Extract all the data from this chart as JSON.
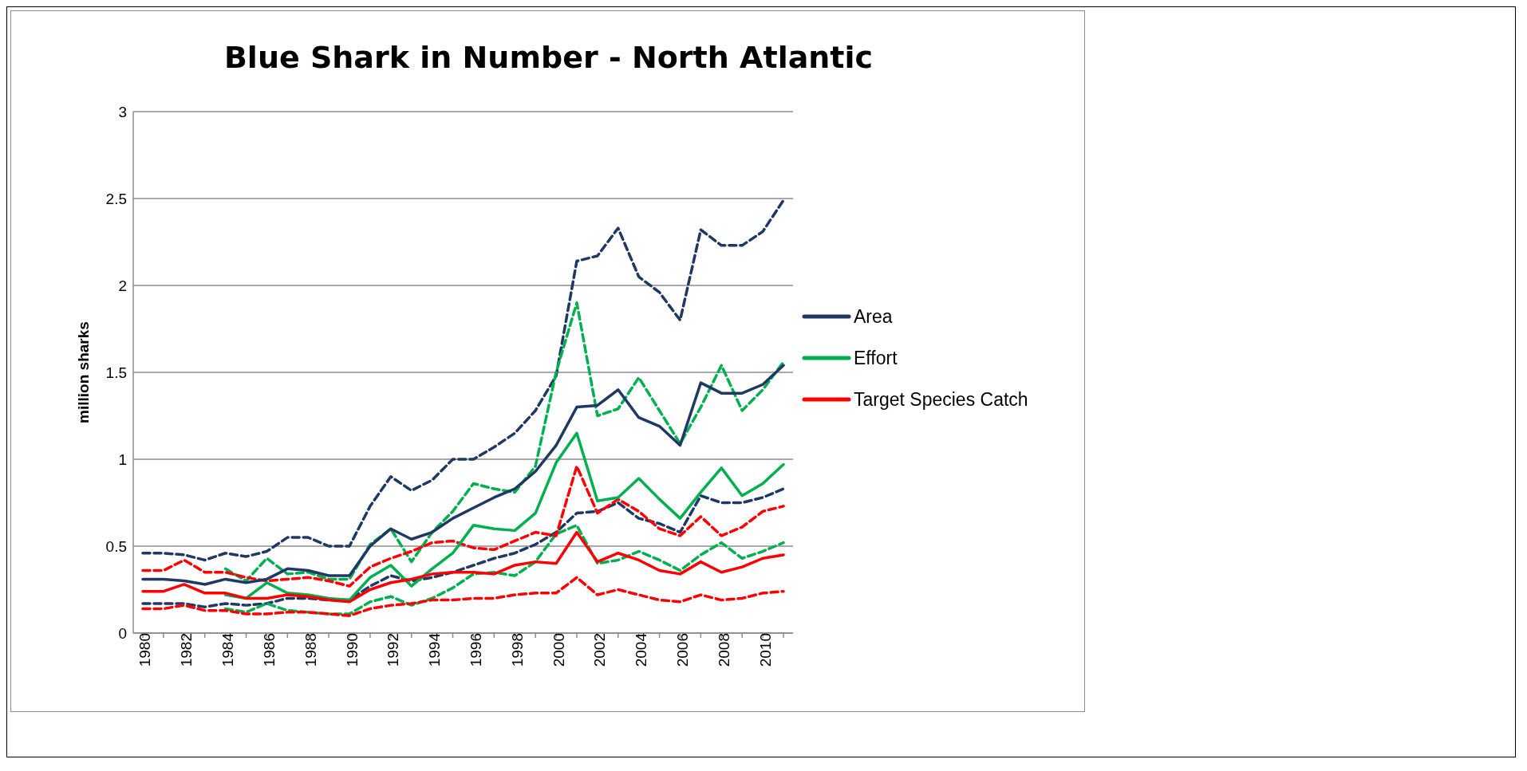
{
  "chart_data": {
    "type": "line",
    "title": "Blue Shark in Number - North Atlantic",
    "ylabel": "million sharks",
    "categories": [
      "1980",
      null,
      "1982",
      null,
      "1984",
      null,
      "1986",
      null,
      "1988",
      null,
      "1990",
      null,
      "1992",
      null,
      "1994",
      null,
      "1996",
      null,
      "1998",
      null,
      "2000",
      null,
      "2002",
      null,
      "2004",
      null,
      "2006",
      null,
      "2008",
      null,
      "2010",
      null
    ],
    "ylim": [
      0,
      3
    ],
    "yticks": [
      0,
      0.5,
      1,
      1.5,
      2,
      2.5,
      3
    ],
    "grid": "y",
    "legend": "right",
    "marker": "none",
    "line_style": "solid",
    "series": [
      {
        "color": "#1f3864",
        "line_style": "dashed",
        "values": [
          0.46,
          0.46,
          0.45,
          0.42,
          0.46,
          0.44,
          0.47,
          0.55,
          0.55,
          0.5,
          0.5,
          0.73,
          0.9,
          0.82,
          0.88,
          1.0,
          1.0,
          1.07,
          1.15,
          1.28,
          1.48,
          2.14,
          2.17,
          2.33,
          2.05,
          1.96,
          1.8,
          2.32,
          2.23,
          2.23,
          2.31,
          2.49
        ]
      },
      {
        "color": "#1f3864",
        "line_style": "dashed",
        "values": [
          0.17,
          0.17,
          0.17,
          0.15,
          0.17,
          0.16,
          0.17,
          0.2,
          0.2,
          0.19,
          0.19,
          0.27,
          0.33,
          0.3,
          0.32,
          0.35,
          0.39,
          0.43,
          0.46,
          0.51,
          0.58,
          0.69,
          0.7,
          0.75,
          0.66,
          0.63,
          0.58,
          0.79,
          0.75,
          0.75,
          0.78,
          0.83
        ]
      },
      {
        "color": "#00b050",
        "line_style": "dashed",
        "values": [
          null,
          null,
          null,
          null,
          0.37,
          0.3,
          0.43,
          0.34,
          0.35,
          0.31,
          0.31,
          0.51,
          0.6,
          0.41,
          0.58,
          0.7,
          0.86,
          0.83,
          0.81,
          0.96,
          1.5,
          1.9,
          1.25,
          1.29,
          1.47,
          1.28,
          1.09,
          1.3,
          1.54,
          1.28,
          1.4,
          1.56
        ]
      },
      {
        "color": "#00b050",
        "line_style": "dashed",
        "values": [
          null,
          null,
          null,
          null,
          0.14,
          0.12,
          0.17,
          0.13,
          0.12,
          0.11,
          0.11,
          0.18,
          0.21,
          0.16,
          0.2,
          0.26,
          0.34,
          0.35,
          0.33,
          0.41,
          0.57,
          0.62,
          0.4,
          0.42,
          0.47,
          0.42,
          0.36,
          0.45,
          0.52,
          0.43,
          0.47,
          0.52
        ]
      },
      {
        "color": "#ff0000",
        "line_style": "dashed",
        "values": [
          0.36,
          0.36,
          0.42,
          0.35,
          0.35,
          0.32,
          0.3,
          0.31,
          0.32,
          0.3,
          0.27,
          0.38,
          0.43,
          0.47,
          0.52,
          0.53,
          0.49,
          0.48,
          0.53,
          0.58,
          0.56,
          0.96,
          0.69,
          0.77,
          0.7,
          0.6,
          0.56,
          0.67,
          0.56,
          0.61,
          0.7,
          0.73
        ]
      },
      {
        "color": "#ff0000",
        "line_style": "dashed",
        "values": [
          0.14,
          0.14,
          0.16,
          0.13,
          0.13,
          0.11,
          0.11,
          0.12,
          0.12,
          0.11,
          0.1,
          0.14,
          0.16,
          0.17,
          0.19,
          0.19,
          0.2,
          0.2,
          0.22,
          0.23,
          0.23,
          0.32,
          0.22,
          0.25,
          0.22,
          0.19,
          0.18,
          0.22,
          0.19,
          0.2,
          0.23,
          0.24
        ]
      },
      {
        "name": "Area",
        "color": "#1f3864",
        "values": [
          0.31,
          0.31,
          0.3,
          0.28,
          0.31,
          0.29,
          0.31,
          0.37,
          0.36,
          0.33,
          0.33,
          0.5,
          0.6,
          0.54,
          0.58,
          0.66,
          0.72,
          0.78,
          0.83,
          0.93,
          1.08,
          1.3,
          1.31,
          1.4,
          1.24,
          1.19,
          1.08,
          1.44,
          1.38,
          1.38,
          1.43,
          1.54
        ]
      },
      {
        "name": "Effort",
        "color": "#00b050",
        "values": [
          null,
          null,
          null,
          null,
          0.22,
          0.2,
          0.29,
          0.23,
          0.22,
          0.2,
          0.19,
          0.32,
          0.39,
          0.27,
          0.37,
          0.46,
          0.62,
          0.6,
          0.59,
          0.69,
          0.98,
          1.15,
          0.76,
          0.78,
          0.89,
          0.77,
          0.66,
          0.81,
          0.95,
          0.79,
          0.86,
          0.97
        ]
      },
      {
        "name": "Target Species Catch",
        "color": "#ff0000",
        "values": [
          0.24,
          0.24,
          0.28,
          0.23,
          0.23,
          0.2,
          0.2,
          0.22,
          0.21,
          0.19,
          0.18,
          0.25,
          0.29,
          0.31,
          0.34,
          0.35,
          0.35,
          0.34,
          0.39,
          0.41,
          0.4,
          0.58,
          0.41,
          0.46,
          0.42,
          0.36,
          0.34,
          0.41,
          0.35,
          0.38,
          0.43,
          0.45
        ]
      }
    ]
  }
}
